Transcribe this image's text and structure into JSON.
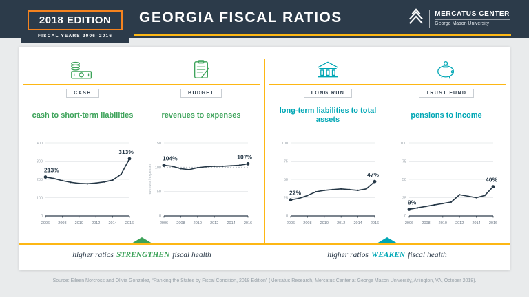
{
  "palette": {
    "navy": "#2c3b4a",
    "amber": "#fdb714",
    "orange": "#f5831f",
    "green": "#3da35a",
    "teal": "#00a7b5",
    "background": "#e9ebec"
  },
  "header": {
    "edition_badge": "2018 EDITION",
    "fiscal_years": "FISCAL YEARS 2006–2016",
    "title": "GEORGIA FISCAL RATIOS",
    "logo_name": "MERCATUS CENTER",
    "logo_subtitle": "George Mason University"
  },
  "panels": [
    {
      "label": "CASH",
      "title": "cash to short-term liabilities"
    },
    {
      "label": "BUDGET",
      "title": "revenues to expenses"
    },
    {
      "label": "LONG RUN",
      "title": "long-term liabilities to total assets"
    },
    {
      "label": "TRUST FUND",
      "title": "pensions to income"
    }
  ],
  "chart_data": [
    {
      "type": "line",
      "panel": "CASH",
      "title": "cash to short-term liabilities",
      "x": [
        2006,
        2007,
        2008,
        2009,
        2010,
        2011,
        2012,
        2013,
        2014,
        2015,
        2016
      ],
      "values": [
        213,
        205,
        193,
        184,
        178,
        176,
        180,
        186,
        196,
        228,
        313
      ],
      "ylim": [
        0,
        400
      ],
      "yticks": [
        0,
        100,
        200,
        300,
        400
      ],
      "xticks": [
        2006,
        2008,
        2010,
        2012,
        2014,
        2016
      ],
      "first_label": "213%",
      "last_label": "313%",
      "line_color": "#253746",
      "grid": true,
      "legend": "none"
    },
    {
      "type": "line",
      "panel": "BUDGET",
      "title": "revenues to expenses",
      "x": [
        2006,
        2007,
        2008,
        2009,
        2010,
        2011,
        2012,
        2013,
        2014,
        2015,
        2016
      ],
      "values": [
        104,
        102,
        97,
        95,
        99,
        101,
        102,
        102,
        103,
        104,
        107
      ],
      "ylim": [
        0,
        150
      ],
      "yticks": [
        0,
        50,
        100,
        150
      ],
      "xticks": [
        2006,
        2008,
        2010,
        2012,
        2014,
        2016
      ],
      "ref_line": 100,
      "axis_label": "revenues / expenses",
      "first_label": "104%",
      "last_label": "107%",
      "line_color": "#253746",
      "grid": true,
      "legend": "none"
    },
    {
      "type": "line",
      "panel": "LONG RUN",
      "title": "long-term liabilities to total assets",
      "x": [
        2006,
        2007,
        2008,
        2009,
        2010,
        2011,
        2012,
        2013,
        2014,
        2015,
        2016
      ],
      "values": [
        22,
        24,
        28,
        33,
        35,
        36,
        37,
        36,
        35,
        37,
        47
      ],
      "ylim": [
        0,
        100
      ],
      "yticks": [
        0,
        25,
        50,
        75,
        100
      ],
      "xticks": [
        2006,
        2008,
        2010,
        2012,
        2014,
        2016
      ],
      "first_label": "22%",
      "last_label": "47%",
      "line_color": "#253746",
      "grid": true,
      "legend": "none"
    },
    {
      "type": "line",
      "panel": "TRUST FUND",
      "title": "pensions to income",
      "x": [
        2006,
        2007,
        2008,
        2009,
        2010,
        2011,
        2012,
        2013,
        2014,
        2015,
        2016
      ],
      "values": [
        9,
        11,
        13,
        15,
        17,
        19,
        29,
        27,
        25,
        28,
        40
      ],
      "ylim": [
        0,
        100
      ],
      "yticks": [
        0,
        25,
        50,
        75,
        100
      ],
      "xticks": [
        2006,
        2008,
        2010,
        2012,
        2014,
        2016
      ],
      "first_label": "9%",
      "last_label": "40%",
      "line_color": "#253746",
      "grid": true,
      "legend": "none"
    }
  ],
  "footers": {
    "left": {
      "prefix": "higher ratios",
      "emphasis": "STRENGTHEN",
      "suffix": "fiscal health"
    },
    "right": {
      "prefix": "higher ratios",
      "emphasis": "WEAKEN",
      "suffix": "fiscal health"
    }
  },
  "source": "Source: Eileen Norcross and Olivia Gonzalez, “Ranking the States by Fiscal Condition, 2018 Edition” (Mercatus Research, Mercatus Center at George Mason University, Arlington, VA, October 2018)."
}
